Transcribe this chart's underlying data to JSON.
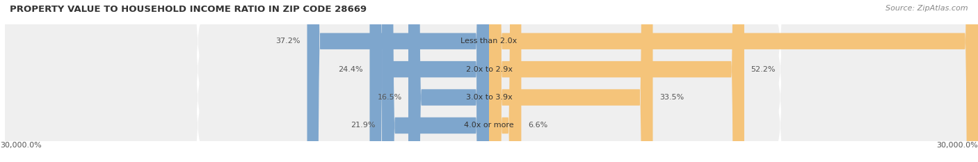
{
  "title": "PROPERTY VALUE TO HOUSEHOLD INCOME RATIO IN ZIP CODE 28669",
  "source": "Source: ZipAtlas.com",
  "categories": [
    "Less than 2.0x",
    "2.0x to 2.9x",
    "3.0x to 3.9x",
    "4.0x or more"
  ],
  "without_mortgage": [
    37.2,
    24.4,
    16.5,
    21.9
  ],
  "with_mortgage": [
    27081.4,
    52.2,
    33.5,
    6.6
  ],
  "without_mortgage_color": "#7ea6cd",
  "with_mortgage_color": "#f5c47a",
  "row_bg_color": "#efefef",
  "bg_color": "#ffffff",
  "x_min": -30000.0,
  "x_max": 30000.0,
  "x_label_left": "30,000.0%",
  "x_label_right": "30,000.0%",
  "title_fontsize": 9.5,
  "source_fontsize": 8,
  "label_fontsize": 8,
  "legend_fontsize": 8
}
